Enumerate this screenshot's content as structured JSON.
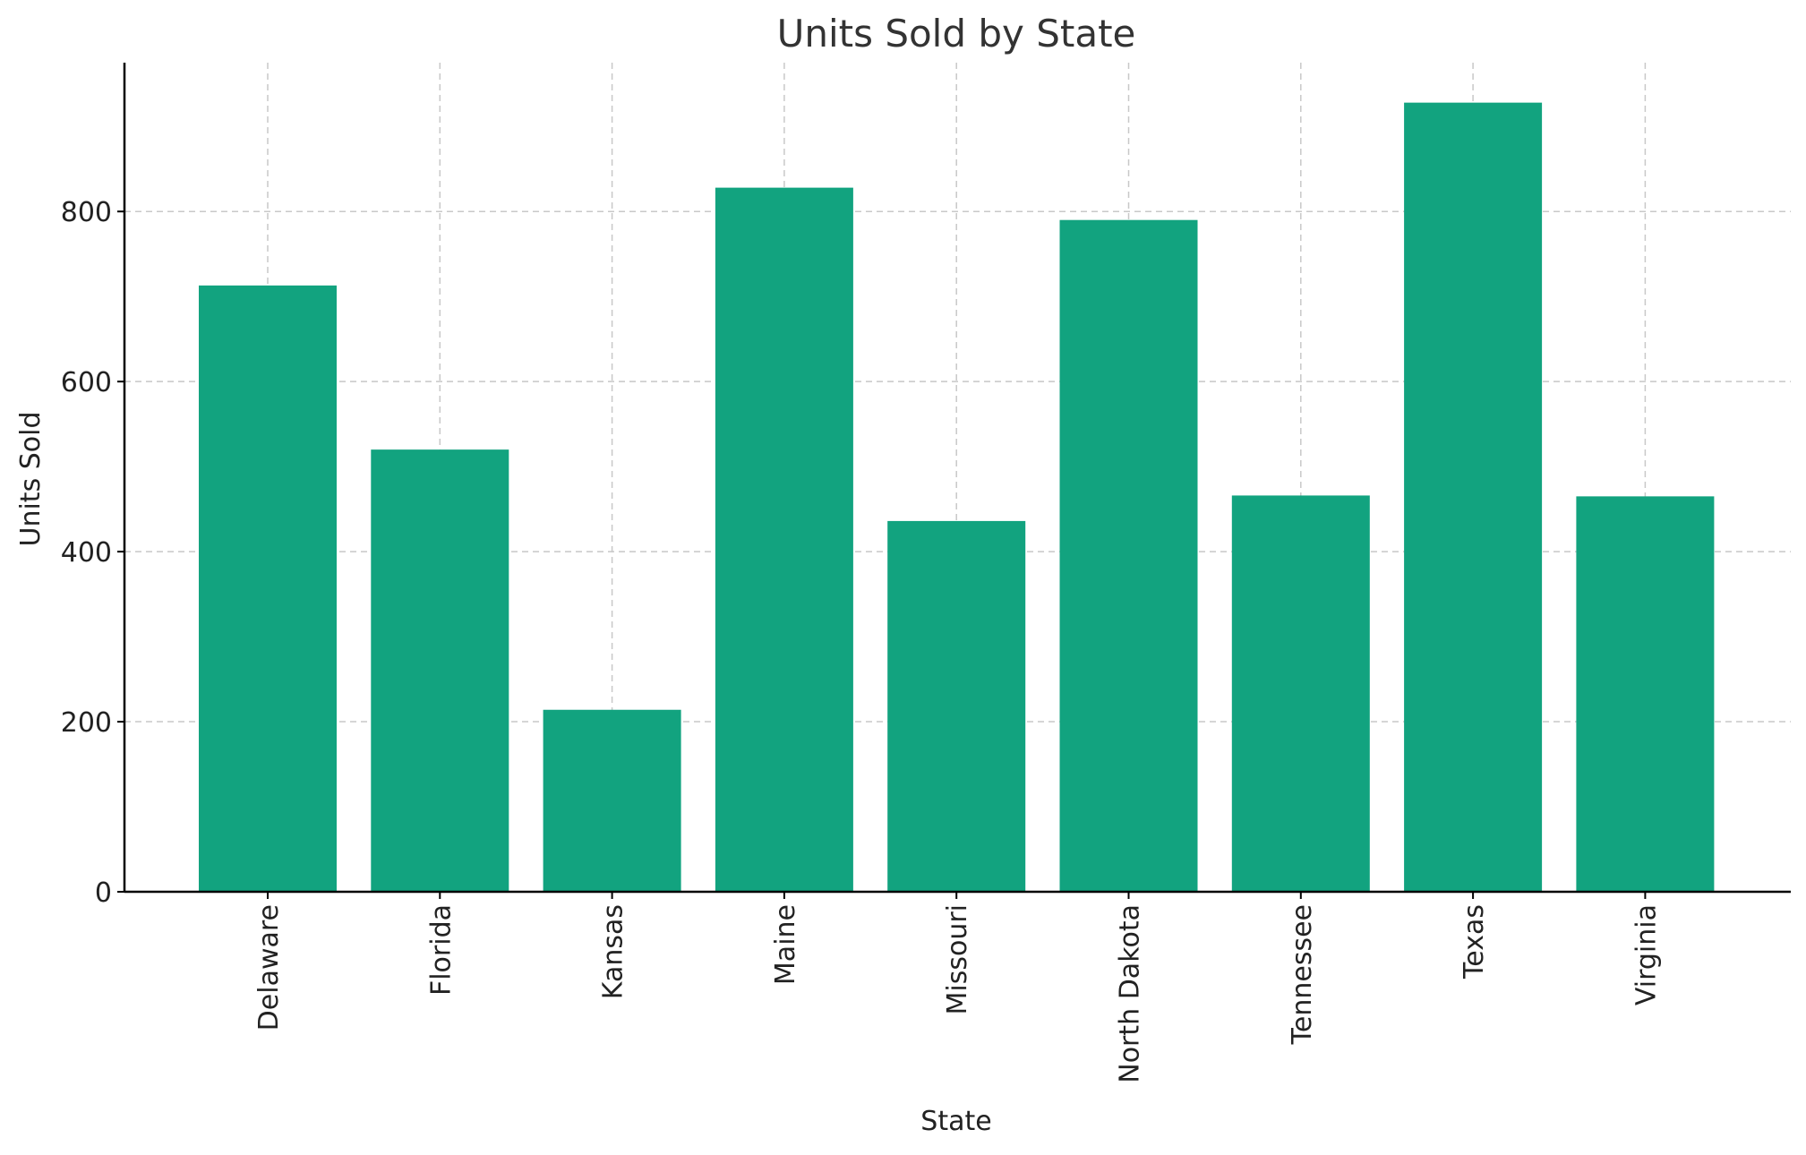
{
  "chart_data": {
    "type": "bar",
    "title": "Units Sold by State",
    "xlabel": "State",
    "ylabel": "Units Sold",
    "categories": [
      "Delaware",
      "Florida",
      "Kansas",
      "Maine",
      "Missouri",
      "North Dakota",
      "Tennessee",
      "Texas",
      "Virginia"
    ],
    "values": [
      713,
      520,
      214,
      828,
      436,
      790,
      466,
      928,
      465
    ],
    "ylim": [
      0,
      975
    ],
    "yticks": [
      0,
      200,
      400,
      600,
      800
    ],
    "grid": true,
    "bar_color": "#12a37f"
  }
}
